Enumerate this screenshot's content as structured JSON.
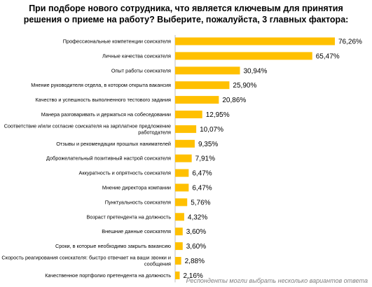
{
  "chart_data": {
    "type": "bar",
    "orientation": "horizontal",
    "title_line1": "При подборе нового сотрудника, что является ключевым для принятия",
    "title_line2": "решения о приеме на работу? Выберите, пожалуйста, 3 главных фактора:",
    "categories": [
      [
        "Профессиональные компетенции соискателя"
      ],
      [
        "Личные качества соискателя"
      ],
      [
        "Опыт работы соискателя"
      ],
      [
        "Мнение руководителя отдела, в котором открыта вакансия"
      ],
      [
        "Качество и успешность выполненного тестового задания"
      ],
      [
        "Манера разговаривать и держаться на собеседовании"
      ],
      [
        "Соответствие и/или согласие соискателя на зарплатное предложение",
        "работодателя"
      ],
      [
        "Отзывы и рекомендации прошлых нанимателей"
      ],
      [
        "Доброжелательный позитивный настрой соискателя"
      ],
      [
        "Аккуратность и опрятность соискателя"
      ],
      [
        "Мнение директора компании"
      ],
      [
        "Пунктуальность соискателя"
      ],
      [
        "Возраст претендента на должность"
      ],
      [
        "Внешние данные соискателя"
      ],
      [
        "Сроки, в которые необходимо закрыть вакансию"
      ],
      [
        "Скорость реагирования соискателя: быстро отвечает на ваши звонки и",
        "сообщения"
      ],
      [
        "Качественное портфолио претендента на должность"
      ]
    ],
    "values": [
      76.26,
      65.47,
      30.94,
      25.9,
      20.86,
      12.95,
      10.07,
      9.35,
      7.91,
      6.47,
      6.47,
      5.76,
      4.32,
      3.6,
      3.6,
      2.88,
      2.16
    ],
    "value_labels": [
      "76,26%",
      "65,47%",
      "30,94%",
      "25,90%",
      "20,86%",
      "12,95%",
      "10,07%",
      "9,35%",
      "7,91%",
      "6,47%",
      "6,47%",
      "5,76%",
      "4,32%",
      "3,60%",
      "3,60%",
      "2,88%",
      "2,16%"
    ],
    "xlim": [
      0,
      76.26
    ],
    "bar_color": "#FFC000",
    "grid": false,
    "legend": "none"
  },
  "footnote": "Респонденты могли выбрать несколько вариантов ответа"
}
